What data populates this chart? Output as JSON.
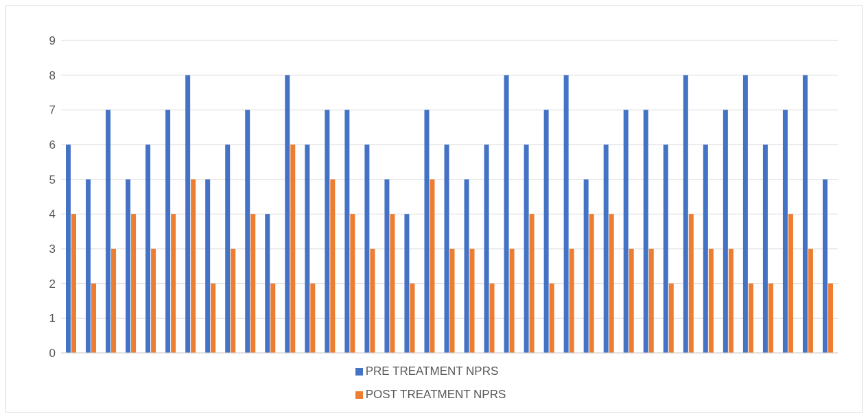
{
  "chart_data": {
    "type": "bar",
    "categories": [
      null,
      null,
      null,
      null,
      null,
      null,
      null,
      null,
      null,
      null,
      null,
      null,
      null,
      null,
      null,
      null,
      null,
      null,
      null,
      null,
      null,
      null,
      null,
      null,
      null,
      null,
      null,
      null,
      null,
      null,
      null,
      null,
      null,
      null,
      null,
      null,
      null,
      null,
      null
    ],
    "series": [
      {
        "name": "PRE TREATMENT NPRS",
        "color": "#4472c4",
        "values": [
          6,
          5,
          7,
          5,
          6,
          7,
          8,
          5,
          6,
          7,
          4,
          8,
          6,
          7,
          7,
          6,
          5,
          4,
          7,
          6,
          5,
          6,
          8,
          6,
          7,
          8,
          5,
          6,
          7,
          7,
          6,
          8,
          6,
          7,
          8,
          6,
          7,
          8,
          5
        ]
      },
      {
        "name": "POST TREATMENT NPRS",
        "color": "#ed7d31",
        "values": [
          4,
          2,
          3,
          4,
          3,
          4,
          5,
          2,
          3,
          4,
          2,
          6,
          2,
          5,
          4,
          3,
          4,
          2,
          5,
          3,
          3,
          2,
          3,
          4,
          2,
          3,
          4,
          4,
          3,
          3,
          2,
          4,
          3,
          3,
          2,
          2,
          4,
          3,
          2
        ]
      }
    ],
    "ylim": [
      0,
      9
    ],
    "yticks": [
      0,
      1,
      2,
      3,
      4,
      5,
      6,
      7,
      8,
      9
    ],
    "grid": "y",
    "legend": "bottom"
  }
}
